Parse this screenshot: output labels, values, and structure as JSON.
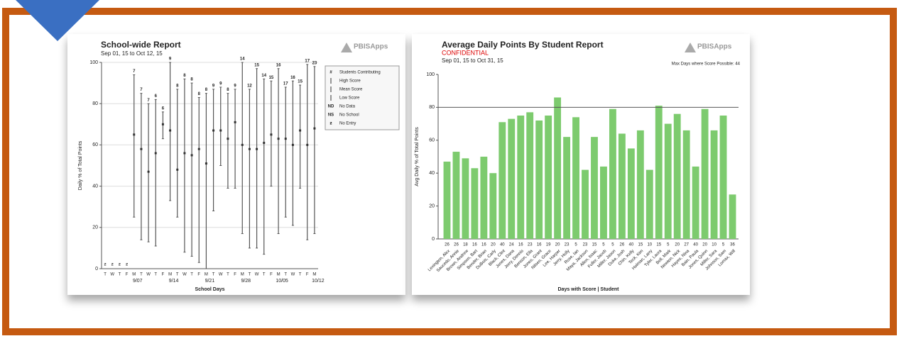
{
  "chart_data": [
    {
      "type": "range",
      "title": "School-wide Report",
      "subtitle": "Sep 01, 15 to Oct 12, 15",
      "logo": "PBISApps",
      "y_label": "Daily % of Total Points",
      "x_label": "School Days",
      "categories": [
        "T",
        "W",
        "T",
        "F",
        "M",
        "T",
        "W",
        "T",
        "F",
        "M",
        "T",
        "W",
        "T",
        "F",
        "M",
        "T",
        "W",
        "T",
        "F",
        "M",
        "T",
        "W",
        "T",
        "F",
        "M",
        "T",
        "W",
        "T",
        "F",
        "M"
      ],
      "week_labels": [
        null,
        null,
        null,
        null,
        "9/07",
        null,
        null,
        null,
        null,
        "9/14",
        null,
        null,
        null,
        null,
        "9/21",
        null,
        null,
        null,
        null,
        "9/28",
        null,
        null,
        null,
        null,
        "10/05",
        null,
        null,
        null,
        null,
        "10/12"
      ],
      "status": [
        "ƶ",
        "ƶ",
        "ƶ",
        "ƶ",
        null,
        null,
        null,
        null,
        null,
        null,
        null,
        null,
        null,
        null,
        null,
        null,
        null,
        null,
        null,
        null,
        null,
        null,
        null,
        null,
        null,
        null,
        null,
        null,
        null,
        null
      ],
      "series": [
        {
          "name": "Students Contributing",
          "symbol": "#",
          "values": [
            null,
            null,
            null,
            null,
            7,
            7,
            7,
            6,
            6,
            9,
            8,
            8,
            8,
            8,
            8,
            9,
            9,
            8,
            9,
            14,
            12,
            15,
            14,
            15,
            16,
            17,
            16,
            15,
            17,
            23
          ]
        },
        {
          "name": "High Score",
          "values": [
            null,
            null,
            null,
            null,
            94,
            85,
            80,
            82,
            76,
            100,
            87,
            92,
            90,
            83,
            85,
            87,
            88,
            85,
            87,
            100,
            87,
            97,
            92,
            91,
            97,
            88,
            91,
            89,
            99,
            98
          ]
        },
        {
          "name": "Mean Score",
          "values": [
            null,
            null,
            null,
            null,
            65,
            58,
            47,
            56,
            70,
            67,
            48,
            56,
            55,
            58,
            51,
            67,
            67,
            63,
            71,
            60,
            58,
            58,
            61,
            65,
            63,
            63,
            60,
            67,
            60,
            68
          ]
        },
        {
          "name": "Low Score",
          "values": [
            null,
            null,
            null,
            null,
            25,
            14,
            13,
            11,
            63,
            33,
            25,
            8,
            6,
            3,
            0,
            28,
            50,
            39,
            39,
            17,
            10,
            10,
            7,
            40,
            17,
            25,
            21,
            39,
            14,
            17
          ]
        }
      ],
      "legend_extra": [
        {
          "symbol": "ND",
          "name": "No Data"
        },
        {
          "symbol": "NS",
          "name": "No School"
        },
        {
          "symbol": "ƶ",
          "name": "No Entry"
        }
      ],
      "ylim": [
        0,
        100
      ],
      "yticks": [
        0,
        20,
        40,
        60,
        80,
        100
      ],
      "grid": true,
      "color": "#555555"
    },
    {
      "type": "bar",
      "title": "Average Daily Points By Student Report",
      "confidential": "CONFIDENTIAL",
      "subtitle": "Sep 01, 15 to Oct 31, 15",
      "note": "Max Days where Score Possible: 44",
      "logo": "PBISApps",
      "y_label": "Avg Daily % of Total Points",
      "x_label": "Days with Score | Student",
      "categories": [
        "Lexington, Alex",
        "Saucedo, Annie",
        "Brown, Andrew",
        "Simpson, Bart",
        "Bender, Brian",
        "DuBois, Carly",
        "Black, Clint",
        "Jones, Dana",
        "Jerry, Dennis",
        "Benson, Ella",
        "Jones, Grant",
        "Nilsen, Grace",
        "Lee, Harper",
        "Jerry, Holly",
        "Rose, Ian",
        "Maya, Jackson",
        "Allen, Isaac",
        "Fuller, Jacob",
        "Miller, Jason",
        "Duke, Josh",
        "Chin, Kelly",
        "Teck, Kim",
        "Holman, Larry",
        "Tyler, Laura",
        "Bell, Mark",
        "Newton, Nick",
        "Hayes, Nina",
        "Bain, Paula",
        "Jones, Quinn",
        "Miller, Sara",
        "Johnson, Sam",
        "Lomax, Will"
      ],
      "days_with_score": [
        26,
        26,
        18,
        16,
        16,
        20,
        40,
        24,
        16,
        23,
        16,
        19,
        20,
        23,
        5,
        23,
        15,
        5,
        5,
        26,
        40,
        15,
        10,
        15,
        5,
        20,
        27,
        40,
        20,
        10,
        5,
        36
      ],
      "values": [
        47,
        53,
        49,
        43,
        50,
        40,
        71,
        73,
        75,
        77,
        72,
        75,
        86,
        62,
        74,
        42,
        62,
        44,
        79,
        64,
        55,
        66,
        42,
        81,
        70,
        76,
        66,
        44,
        79,
        66,
        75,
        27
      ],
      "reference_line": 80,
      "ylim": [
        0,
        100
      ],
      "yticks": [
        0,
        20,
        40,
        60,
        80,
        100
      ],
      "grid": false,
      "color": "#7dcb6e"
    }
  ]
}
